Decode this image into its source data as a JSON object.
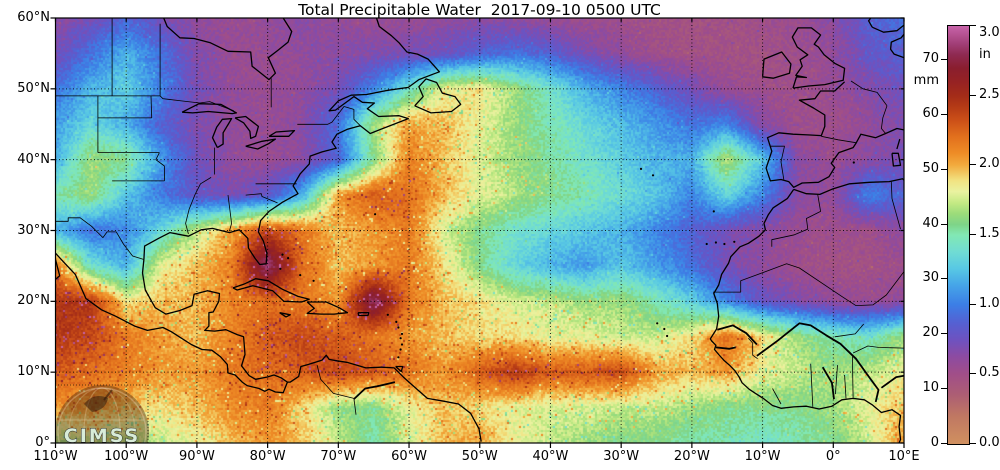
{
  "title": "Total Precipitable Water  2017-09-10 0500 UTC",
  "watermark": "CIMSS",
  "chart_data": {
    "type": "heatmap",
    "title": "Total Precipitable Water  2017-09-10 0500 UTC",
    "projection": "equirectangular",
    "lon_range": [
      -110,
      10
    ],
    "lat_range": [
      0,
      60
    ],
    "grid_step_deg": 10,
    "x_tick_labels": [
      "110°W",
      "100°W",
      "90°W",
      "80°W",
      "70°W",
      "60°W",
      "50°W",
      "40°W",
      "30°W",
      "20°W",
      "10°W",
      "0°",
      "10°E"
    ],
    "y_tick_labels": [
      "0°",
      "10°N",
      "20°N",
      "30°N",
      "40°N",
      "50°N",
      "60°N"
    ],
    "colorbar": {
      "unit_left": "mm",
      "unit_right": "in",
      "ticks_mm": [
        0,
        10,
        20,
        30,
        40,
        50,
        60,
        70
      ],
      "ticks_in": [
        "0.0",
        "0.5",
        "1.0",
        "1.5",
        "2.0",
        "2.5",
        "3.0"
      ],
      "max_mm": 76.2,
      "stops": [
        {
          "v": 0,
          "c": "#d09060"
        },
        {
          "v": 5,
          "c": "#c07862"
        },
        {
          "v": 9,
          "c": "#ac5e74"
        },
        {
          "v": 12.7,
          "c": "#a14e88"
        },
        {
          "v": 16,
          "c": "#8c4ba2"
        },
        {
          "v": 19,
          "c": "#6e52c0"
        },
        {
          "v": 22,
          "c": "#5560d2"
        },
        {
          "v": 25.4,
          "c": "#3c7ee6"
        },
        {
          "v": 29,
          "c": "#46a6e8"
        },
        {
          "v": 32,
          "c": "#58c8e4"
        },
        {
          "v": 35,
          "c": "#70dcd4"
        },
        {
          "v": 38.1,
          "c": "#82e8b4"
        },
        {
          "v": 40,
          "c": "#7ed488"
        },
        {
          "v": 42,
          "c": "#9cdc7a"
        },
        {
          "v": 44,
          "c": "#c4ea84"
        },
        {
          "v": 46,
          "c": "#eaf2a0"
        },
        {
          "v": 48,
          "c": "#f2e382"
        },
        {
          "v": 50.8,
          "c": "#f2ab3e"
        },
        {
          "v": 53,
          "c": "#ee8c26"
        },
        {
          "v": 56,
          "c": "#e2701d"
        },
        {
          "v": 59,
          "c": "#cc5018"
        },
        {
          "v": 61.5,
          "c": "#b43a16"
        },
        {
          "v": 63.5,
          "c": "#a42c18"
        },
        {
          "v": 66,
          "c": "#962223"
        },
        {
          "v": 68.5,
          "c": "#8a1e2e"
        },
        {
          "v": 71,
          "c": "#8f2a52"
        },
        {
          "v": 73,
          "c": "#a23f78"
        },
        {
          "v": 76.2,
          "c": "#c864aa"
        }
      ]
    },
    "field": {
      "units": "mm",
      "lons": [
        -110,
        -105,
        -100,
        -95,
        -90,
        -85,
        -80,
        -75,
        -70,
        -65,
        -60,
        -55,
        -50,
        -45,
        -40,
        -35,
        -30,
        -25,
        -20,
        -15,
        -10,
        -5,
        0,
        5,
        10
      ],
      "lats": [
        60,
        55,
        50,
        45,
        40,
        35,
        30,
        25,
        20,
        15,
        10,
        5,
        0
      ],
      "values": [
        [
          16,
          18,
          22,
          18,
          15,
          14,
          15,
          16,
          15,
          14,
          14,
          15,
          16,
          15,
          14,
          13,
          13,
          12,
          12,
          12,
          13,
          14,
          16,
          22,
          24
        ],
        [
          18,
          24,
          30,
          24,
          17,
          14,
          14,
          15,
          16,
          17,
          18,
          19,
          22,
          24,
          22,
          18,
          15,
          13,
          12,
          12,
          12,
          13,
          15,
          20,
          22
        ],
        [
          24,
          30,
          33,
          26,
          18,
          15,
          14,
          15,
          18,
          26,
          36,
          46,
          48,
          42,
          36,
          30,
          26,
          22,
          18,
          14,
          13,
          13,
          14,
          17,
          19
        ],
        [
          28,
          34,
          30,
          22,
          17,
          15,
          14,
          16,
          24,
          42,
          52,
          50,
          46,
          42,
          38,
          34,
          31,
          28,
          24,
          26,
          16,
          13,
          13,
          15,
          17
        ],
        [
          30,
          42,
          40,
          28,
          19,
          15,
          14,
          16,
          22,
          40,
          54,
          50,
          45,
          42,
          39,
          36,
          33,
          30,
          30,
          44,
          32,
          16,
          14,
          16,
          18
        ],
        [
          38,
          42,
          32,
          25,
          20,
          18,
          20,
          30,
          52,
          58,
          56,
          50,
          46,
          43,
          40,
          38,
          35,
          32,
          26,
          34,
          26,
          16,
          15,
          26,
          22
        ],
        [
          30,
          24,
          26,
          34,
          44,
          52,
          60,
          55,
          50,
          52,
          55,
          45,
          40,
          36,
          34,
          32,
          30,
          26,
          22,
          18,
          16,
          14,
          13,
          13,
          16
        ],
        [
          56,
          36,
          30,
          46,
          50,
          54,
          74,
          56,
          50,
          52,
          55,
          48,
          40,
          34,
          30,
          28,
          32,
          28,
          24,
          18,
          15,
          13,
          12,
          12,
          13
        ],
        [
          62,
          62,
          48,
          50,
          50,
          54,
          56,
          55,
          52,
          73,
          55,
          50,
          48,
          45,
          44,
          42,
          42,
          38,
          33,
          26,
          20,
          17,
          15,
          14,
          15
        ],
        [
          62,
          60,
          55,
          52,
          50,
          54,
          58,
          60,
          58,
          55,
          52,
          50,
          48,
          48,
          46,
          46,
          44,
          44,
          48,
          56,
          48,
          42,
          38,
          36,
          42
        ],
        [
          58,
          56,
          54,
          52,
          52,
          55,
          56,
          58,
          60,
          58,
          56,
          52,
          58,
          62,
          58,
          58,
          60,
          52,
          50,
          52,
          46,
          44,
          42,
          44,
          46
        ],
        [
          52,
          52,
          50,
          48,
          50,
          53,
          55,
          48,
          42,
          40,
          46,
          50,
          48,
          46,
          45,
          45,
          44,
          44,
          42,
          40,
          40,
          40,
          42,
          46,
          50
        ],
        [
          42,
          44,
          42,
          44,
          46,
          50,
          52,
          50,
          44,
          38,
          45,
          50,
          52,
          46,
          44,
          42,
          40,
          40,
          38,
          38,
          36,
          38,
          40,
          44,
          52
        ]
      ]
    }
  }
}
